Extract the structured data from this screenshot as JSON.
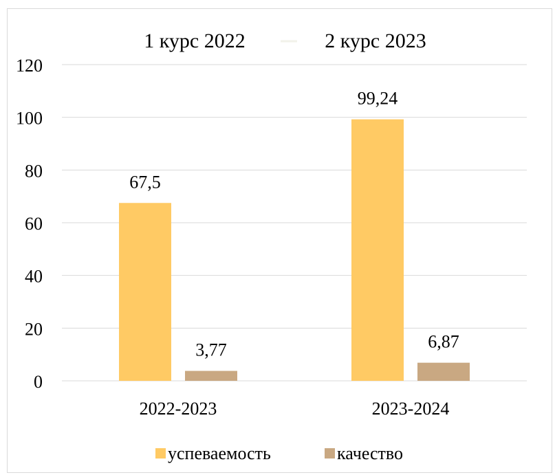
{
  "chart_data": {
    "type": "bar",
    "title": "1 курс 2022",
    "title_secondary": "2 курс 2023",
    "categories": [
      "2022-2023",
      "2023-2024"
    ],
    "series": [
      {
        "name": "успеваемость",
        "color": "#FFCA64",
        "values": [
          67.5,
          99.24
        ],
        "labels": [
          "67,5",
          "99,24"
        ]
      },
      {
        "name": "качество",
        "color": "#C9A882",
        "values": [
          3.77,
          6.87
        ],
        "labels": [
          "3,77",
          "6,87"
        ]
      }
    ],
    "ylim": [
      0,
      120
    ],
    "yticks": [
      0,
      20,
      40,
      60,
      80,
      100,
      120
    ],
    "grid": true,
    "legend_position": "bottom",
    "colors": {
      "gridline": "#d9d9d9",
      "title_marker": "#f2f2ea"
    }
  }
}
